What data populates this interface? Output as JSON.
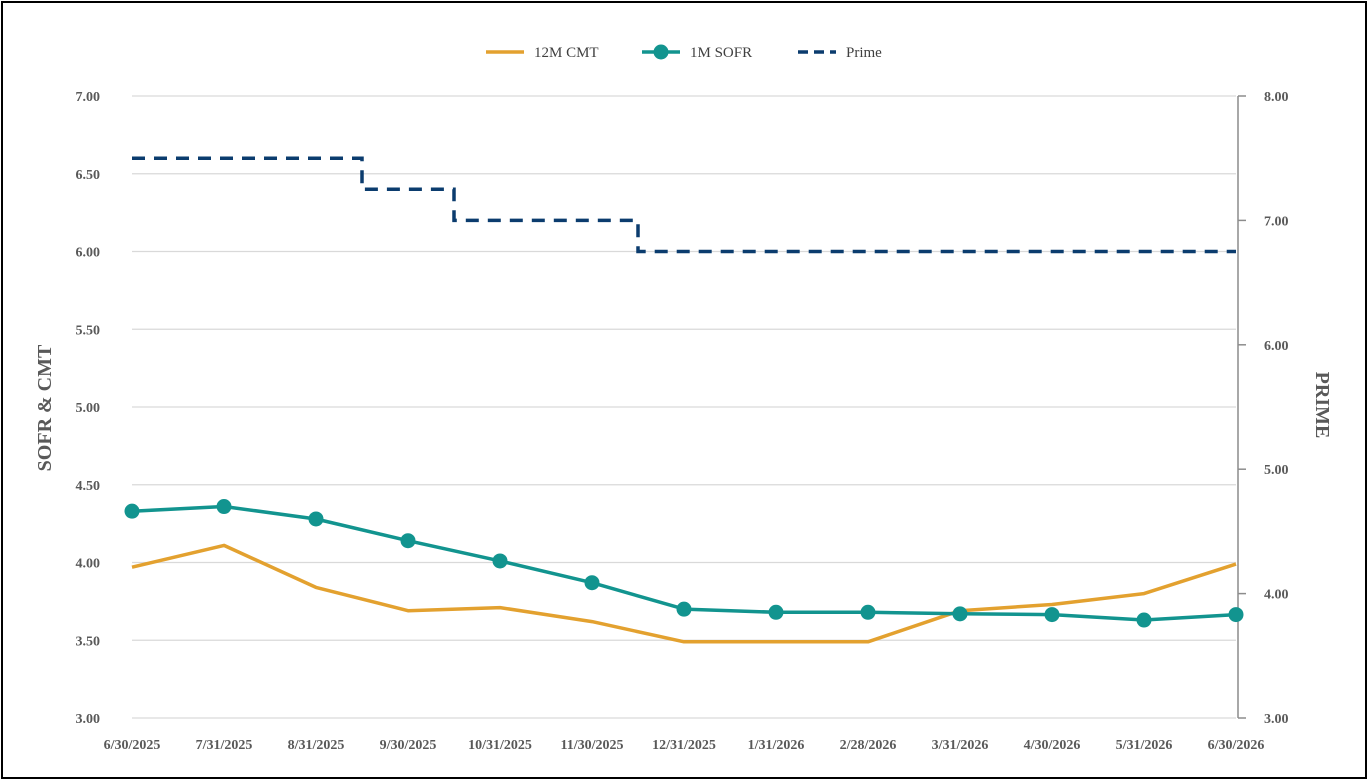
{
  "chart_data": {
    "type": "line",
    "title": "",
    "categories": [
      "6/30/2025",
      "7/31/2025",
      "8/31/2025",
      "9/30/2025",
      "10/31/2025",
      "11/30/2025",
      "12/31/2025",
      "1/31/2026",
      "2/28/2026",
      "3/31/2026",
      "4/30/2026",
      "5/31/2026",
      "6/30/2026"
    ],
    "ylabel": "SOFR & CMT",
    "y2label": "PRIME",
    "ylim": [
      3.0,
      7.0
    ],
    "yticks": [
      "3.00",
      "3.50",
      "4.00",
      "4.50",
      "5.00",
      "5.50",
      "6.00",
      "6.50",
      "7.00"
    ],
    "y2lim": [
      3.0,
      8.0
    ],
    "y2ticks": [
      "3.00",
      "4.00",
      "5.00",
      "6.00",
      "7.00",
      "8.00"
    ],
    "legend_position": "top-center",
    "grid": true,
    "series": [
      {
        "name": "12M CMT",
        "axis": "left",
        "color": "#E3A12F",
        "style": "solid",
        "values": [
          3.97,
          4.11,
          3.84,
          3.69,
          3.71,
          3.62,
          3.49,
          3.49,
          3.49,
          3.69,
          3.73,
          3.8,
          3.99
        ]
      },
      {
        "name": "1M SOFR",
        "axis": "left",
        "color": "#12948F",
        "style": "solid-markers",
        "values": [
          4.33,
          4.36,
          4.28,
          4.14,
          4.01,
          3.87,
          3.7,
          3.68,
          3.68,
          3.67,
          3.665,
          3.63,
          3.665
        ]
      },
      {
        "name": "Prime",
        "axis": "right",
        "color": "#0B3C6E",
        "style": "dashed-step",
        "steps": [
          {
            "from": 0,
            "to": 2.5,
            "value": 7.5
          },
          {
            "from": 2.5,
            "to": 3.5,
            "value": 7.25
          },
          {
            "from": 3.5,
            "to": 5.5,
            "value": 7.0
          },
          {
            "from": 5.5,
            "to": 12,
            "value": 6.75
          }
        ]
      }
    ]
  }
}
